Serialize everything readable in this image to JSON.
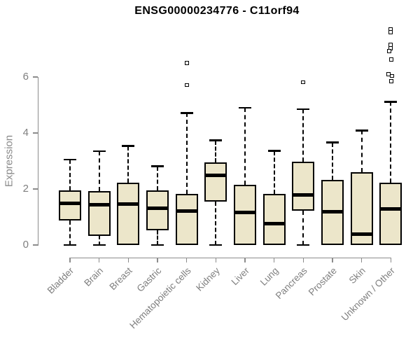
{
  "title": "ENSG00000234776 - C11orf94",
  "chart_data": {
    "type": "boxplot",
    "title": "ENSG00000234776 - C11orf94",
    "xlabel": "",
    "ylabel": "Expression",
    "yticks": [
      0,
      2,
      4,
      6
    ],
    "ylim": [
      0,
      7.9
    ],
    "grid": false,
    "categories": [
      "Bladder",
      "Brain",
      "Breast",
      "Gastric",
      "Hematopoietic cells",
      "Kidney",
      "Liver",
      "Lung",
      "Pancreas",
      "Prostate",
      "Skin",
      "Unknown / Other"
    ],
    "boxes": [
      {
        "category": "Bladder",
        "low": 0,
        "q1": 0.88,
        "median": 1.5,
        "q3": 1.95,
        "high": 3.05,
        "outliers": []
      },
      {
        "category": "Brain",
        "low": 0,
        "q1": 0.33,
        "median": 1.43,
        "q3": 1.92,
        "high": 3.35,
        "outliers": []
      },
      {
        "category": "Breast",
        "low": 0,
        "q1": 0.0,
        "median": 1.46,
        "q3": 2.23,
        "high": 3.53,
        "outliers": []
      },
      {
        "category": "Gastric",
        "low": 0,
        "q1": 0.53,
        "median": 1.32,
        "q3": 1.94,
        "high": 2.81,
        "outliers": []
      },
      {
        "category": "Hematopoietic cells",
        "low": 0,
        "q1": 0.0,
        "median": 1.22,
        "q3": 1.82,
        "high": 4.72,
        "outliers": [
          {
            "v": 6.5
          },
          {
            "v": 5.71
          }
        ]
      },
      {
        "category": "Kidney",
        "low": 0,
        "q1": 1.56,
        "median": 2.48,
        "q3": 2.96,
        "high": 3.73,
        "outliers": []
      },
      {
        "category": "Liver",
        "low": 0,
        "q1": 0.0,
        "median": 1.16,
        "q3": 2.16,
        "high": 4.9,
        "outliers": []
      },
      {
        "category": "Lung",
        "low": 0,
        "q1": 0.0,
        "median": 0.77,
        "q3": 1.83,
        "high": 3.36,
        "outliers": []
      },
      {
        "category": "Pancreas",
        "low": 0,
        "q1": 1.23,
        "median": 1.8,
        "q3": 2.98,
        "high": 4.85,
        "outliers": [
          {
            "v": 5.81
          }
        ]
      },
      {
        "category": "Prostate",
        "low": 0,
        "q1": 0.0,
        "median": 1.19,
        "q3": 2.33,
        "high": 3.66,
        "outliers": []
      },
      {
        "category": "Skin",
        "low": 0,
        "q1": 0.0,
        "median": 0.39,
        "q3": 2.6,
        "high": 4.09,
        "outliers": []
      },
      {
        "category": "Unknown / Other",
        "low": 0,
        "q1": 0.0,
        "median": 1.28,
        "q3": 2.23,
        "high": 5.12,
        "outliers": [
          {
            "v": 7.7,
            "dx": 0
          },
          {
            "v": 7.6,
            "dx": 0
          },
          {
            "v": 7.15,
            "dx": 0
          },
          {
            "v": 7.03,
            "dx": 0
          },
          {
            "v": 6.93,
            "dx": -2
          },
          {
            "v": 6.63,
            "dx": 1
          },
          {
            "v": 6.1,
            "dx": -3
          },
          {
            "v": 6.04,
            "dx": 2
          },
          {
            "v": 5.85,
            "dx": 1
          }
        ]
      }
    ],
    "colors": {
      "box_fill": "#ECE6CA",
      "box_border": "#000000",
      "median": "#000000",
      "whisker": "#000000",
      "outlier_border": "#000000",
      "outlier_fill": "#ffffff",
      "axis": "#8c8c8c",
      "tick_label": "#7f7f7f",
      "axis_label": "#8a8a8a",
      "title": "#000000",
      "background": "#ffffff"
    }
  }
}
